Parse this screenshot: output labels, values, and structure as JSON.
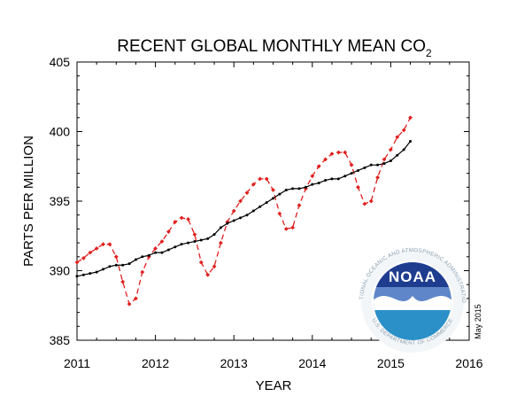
{
  "chart_data": {
    "type": "line",
    "title": "RECENT GLOBAL MONTHLY MEAN CO",
    "title_subscript": "2",
    "xlabel": "YEAR",
    "ylabel": "PARTS PER MILLION",
    "xlim": [
      2011,
      2016
    ],
    "ylim": [
      385,
      405
    ],
    "x_ticks": [
      "2011",
      "2012",
      "2013",
      "2014",
      "2015",
      "2016"
    ],
    "y_ticks": [
      "385",
      "390",
      "395",
      "400",
      "405"
    ],
    "grid": false,
    "legend": "none",
    "series": [
      {
        "color": "#e0201e",
        "style": "dashed",
        "marker": "diamond",
        "x": [
          2011.0,
          2011.083,
          2011.167,
          2011.25,
          2011.333,
          2011.417,
          2011.5,
          2011.583,
          2011.667,
          2011.75,
          2011.833,
          2011.917,
          2012.0,
          2012.083,
          2012.167,
          2012.25,
          2012.333,
          2012.417,
          2012.5,
          2012.583,
          2012.667,
          2012.75,
          2012.833,
          2012.917,
          2013.0,
          2013.083,
          2013.167,
          2013.25,
          2013.333,
          2013.417,
          2013.5,
          2013.583,
          2013.667,
          2013.75,
          2013.833,
          2013.917,
          2014.0,
          2014.083,
          2014.167,
          2014.25,
          2014.333,
          2014.417,
          2014.5,
          2014.583,
          2014.667,
          2014.75,
          2014.833,
          2014.917,
          2015.0,
          2015.083,
          2015.167,
          2015.25
        ],
        "y": [
          390.6,
          390.9,
          391.3,
          391.6,
          391.9,
          391.9,
          391.0,
          389.2,
          387.6,
          388.0,
          389.9,
          391.0,
          391.6,
          392.1,
          392.8,
          393.5,
          393.8,
          393.7,
          392.6,
          390.6,
          389.7,
          390.3,
          392.0,
          393.5,
          394.3,
          395.0,
          395.6,
          396.2,
          396.6,
          396.6,
          395.8,
          394.1,
          393.0,
          393.1,
          394.7,
          395.9,
          396.8,
          397.5,
          398.0,
          398.4,
          398.5,
          398.5,
          397.6,
          396.0,
          394.8,
          395.0,
          396.7,
          398.0,
          398.7,
          399.6,
          400.1,
          401.0
        ]
      },
      {
        "color": "#000000",
        "style": "solid",
        "marker": "dot",
        "x": [
          2011.0,
          2011.083,
          2011.167,
          2011.25,
          2011.333,
          2011.417,
          2011.5,
          2011.583,
          2011.667,
          2011.75,
          2011.833,
          2011.917,
          2012.0,
          2012.083,
          2012.167,
          2012.25,
          2012.333,
          2012.417,
          2012.5,
          2012.583,
          2012.667,
          2012.75,
          2012.833,
          2012.917,
          2013.0,
          2013.083,
          2013.167,
          2013.25,
          2013.333,
          2013.417,
          2013.5,
          2013.583,
          2013.667,
          2013.75,
          2013.833,
          2013.917,
          2014.0,
          2014.083,
          2014.167,
          2014.25,
          2014.333,
          2014.417,
          2014.5,
          2014.583,
          2014.667,
          2014.75,
          2014.833,
          2014.917,
          2015.0,
          2015.083,
          2015.167,
          2015.25
        ],
        "y": [
          389.6,
          389.7,
          389.8,
          389.9,
          390.1,
          390.3,
          390.4,
          390.4,
          390.5,
          390.8,
          391.0,
          391.1,
          391.3,
          391.3,
          391.5,
          391.7,
          391.9,
          392.0,
          392.1,
          392.2,
          392.3,
          392.6,
          393.1,
          393.4,
          393.6,
          393.8,
          394.0,
          394.3,
          394.6,
          394.9,
          395.2,
          395.5,
          395.8,
          395.9,
          395.9,
          396.0,
          396.2,
          396.3,
          396.5,
          396.6,
          396.6,
          396.8,
          397.0,
          397.2,
          397.4,
          397.6,
          397.6,
          397.7,
          397.9,
          398.3,
          398.7,
          399.3
        ]
      }
    ]
  },
  "logo": {
    "word": "NOAA",
    "ring_text_top": "NATIONAL OCEANIC AND ATMOSPHERIC ADMINISTRATION",
    "ring_text_bottom": "U.S. DEPARTMENT OF COMMERCE",
    "colors": {
      "top": "#1e3d8f",
      "top_light": "#5f86c9",
      "bottom": "#2c90c8",
      "ring": "#e8eef2",
      "gull": "#ffffff"
    }
  },
  "credit": "May 2015"
}
